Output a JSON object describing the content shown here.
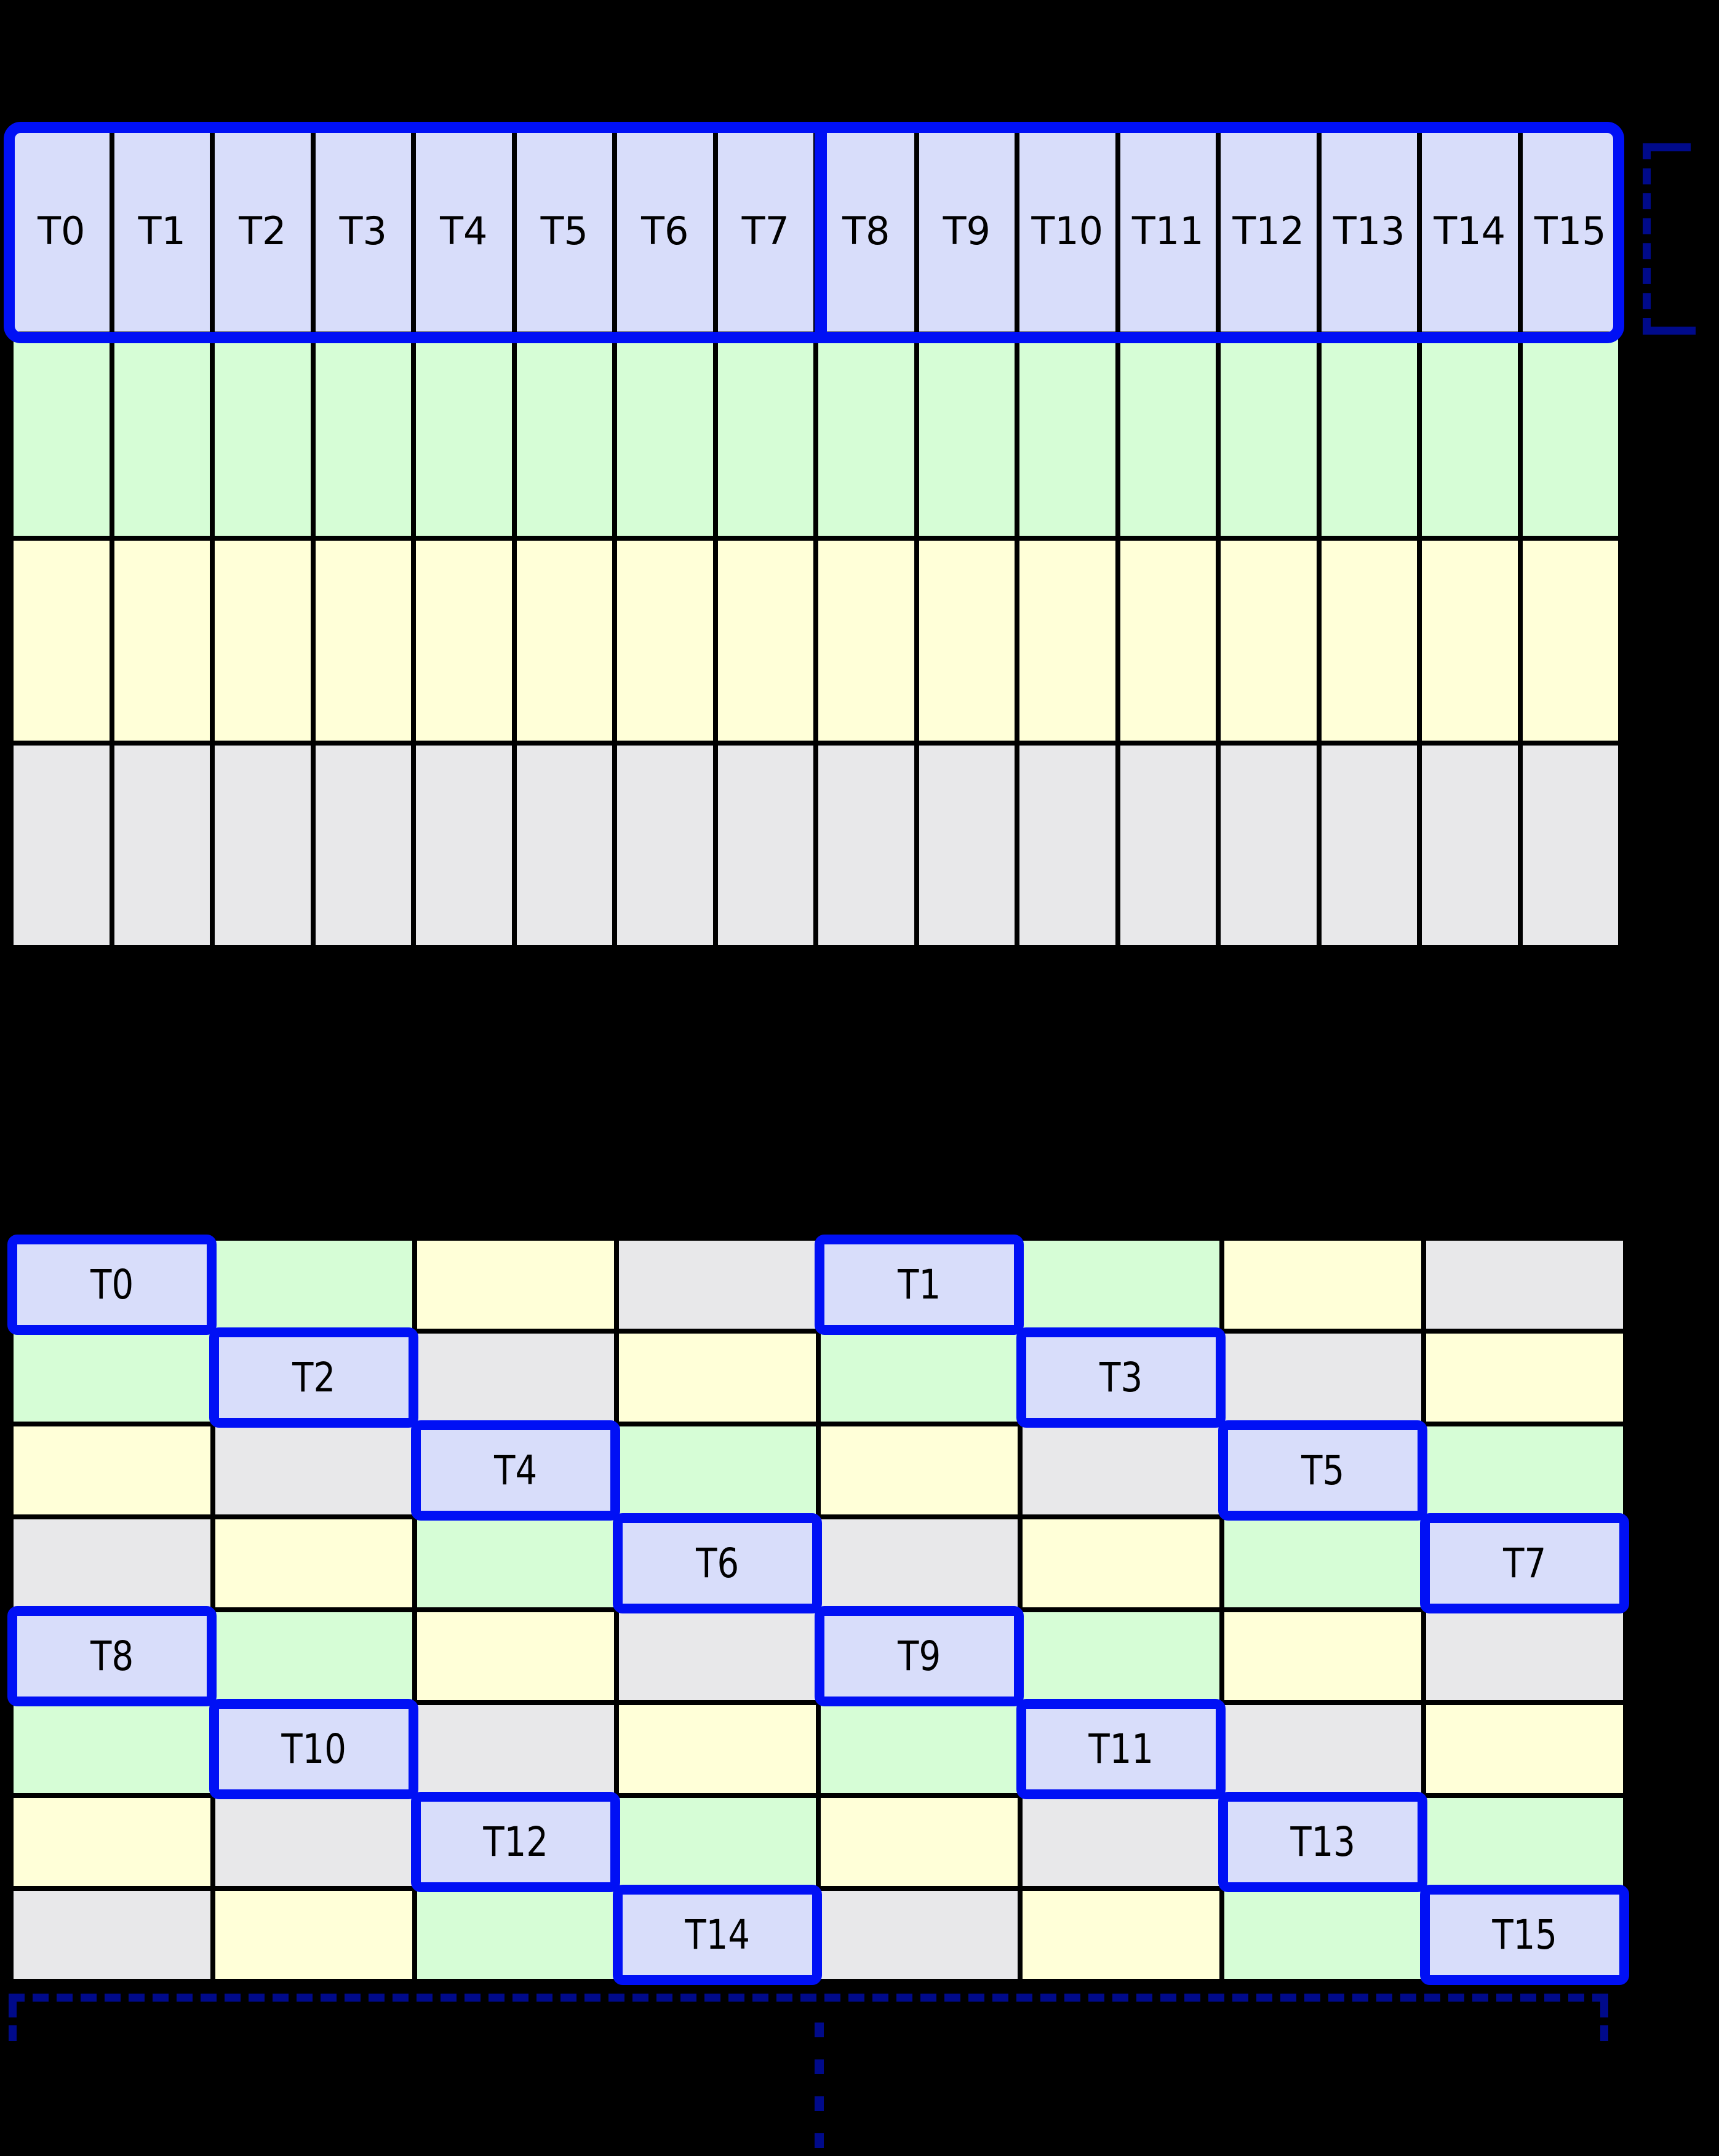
{
  "colors": {
    "background": "#000000",
    "grid_line": "#000000",
    "thread_cell": "#d8ddfa",
    "green_cell": "#d6fdd6",
    "yellow_cell": "#ffffd8",
    "gray_cell": "#e8e8ea",
    "highlight_blue": "#0010f5",
    "bracket_navy": "#000a8a",
    "label_text": "#000000"
  },
  "top_grid": {
    "columns": 16,
    "row_colors": [
      "thread",
      "green",
      "yellow",
      "gray"
    ],
    "thread_labels": [
      "T0",
      "T1",
      "T2",
      "T3",
      "T4",
      "T5",
      "T6",
      "T7",
      "T8",
      "T9",
      "T10",
      "T11",
      "T12",
      "T13",
      "T14",
      "T15"
    ],
    "highlight": "entire thread row outlined in blue with thick divider between T7 and T8"
  },
  "bottom_grid": {
    "columns": 8,
    "rows": 8,
    "color_cycle": [
      "thread",
      "green",
      "yellow",
      "gray"
    ],
    "pattern": "color = cycle[(col mod 4) XOR (row mod 4)]",
    "thread_cells": [
      {
        "row": 0,
        "col": 0,
        "label": "T0"
      },
      {
        "row": 0,
        "col": 4,
        "label": "T1"
      },
      {
        "row": 1,
        "col": 1,
        "label": "T2"
      },
      {
        "row": 1,
        "col": 5,
        "label": "T3"
      },
      {
        "row": 2,
        "col": 2,
        "label": "T4"
      },
      {
        "row": 2,
        "col": 6,
        "label": "T5"
      },
      {
        "row": 3,
        "col": 3,
        "label": "T6"
      },
      {
        "row": 3,
        "col": 7,
        "label": "T7"
      },
      {
        "row": 4,
        "col": 0,
        "label": "T8"
      },
      {
        "row": 4,
        "col": 4,
        "label": "T9"
      },
      {
        "row": 5,
        "col": 1,
        "label": "T10"
      },
      {
        "row": 5,
        "col": 5,
        "label": "T11"
      },
      {
        "row": 6,
        "col": 2,
        "label": "T12"
      },
      {
        "row": 6,
        "col": 6,
        "label": "T13"
      },
      {
        "row": 7,
        "col": 3,
        "label": "T14"
      },
      {
        "row": 7,
        "col": 7,
        "label": "T15"
      }
    ]
  }
}
